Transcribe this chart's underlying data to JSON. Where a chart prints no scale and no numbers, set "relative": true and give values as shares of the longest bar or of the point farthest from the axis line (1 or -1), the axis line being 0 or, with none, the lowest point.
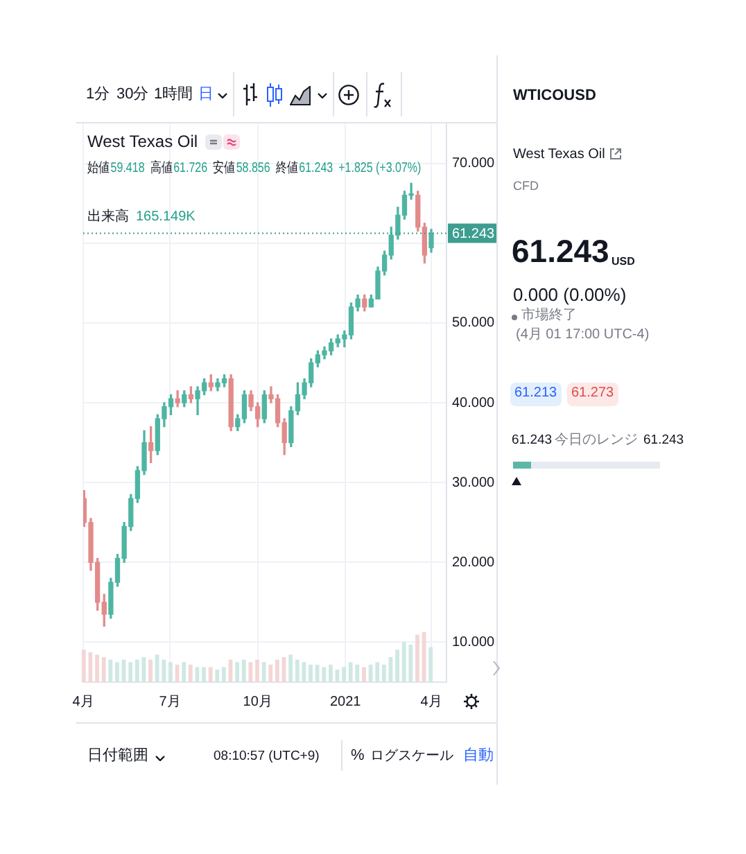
{
  "chart_data": [
    {
      "type": "candlestick",
      "title": "West Texas Oil",
      "x": [
        "2020-04-02",
        "2020-04-09",
        "2020-04-16",
        "2020-04-23",
        "2020-04-30",
        "2020-05-07",
        "2020-05-14",
        "2020-05-21",
        "2020-05-28",
        "2020-06-04",
        "2020-06-11",
        "2020-06-18",
        "2020-06-25",
        "2020-07-02",
        "2020-07-09",
        "2020-07-16",
        "2020-07-23",
        "2020-07-30",
        "2020-08-06",
        "2020-08-13",
        "2020-08-20",
        "2020-08-27",
        "2020-09-03",
        "2020-09-10",
        "2020-09-17",
        "2020-09-24",
        "2020-10-01",
        "2020-10-08",
        "2020-10-15",
        "2020-10-22",
        "2020-10-29",
        "2020-11-05",
        "2020-11-12",
        "2020-11-19",
        "2020-11-26",
        "2020-12-03",
        "2020-12-10",
        "2020-12-17",
        "2020-12-24",
        "2020-12-31",
        "2021-01-07",
        "2021-01-14",
        "2021-01-21",
        "2021-01-28",
        "2021-02-04",
        "2021-02-11",
        "2021-02-18",
        "2021-02-25",
        "2021-03-04",
        "2021-03-11",
        "2021-03-18",
        "2021-03-25",
        "2021-04-01"
      ],
      "ohlc": [
        [
          28,
          29,
          24.5,
          25
        ],
        [
          25,
          25.5,
          19,
          20
        ],
        [
          20,
          20.5,
          14,
          15
        ],
        [
          15,
          16,
          12,
          13.5
        ],
        [
          13.5,
          18,
          13,
          17.5
        ],
        [
          17.5,
          21,
          17,
          20.5
        ],
        [
          20.5,
          25,
          20,
          24.5
        ],
        [
          24.5,
          28.5,
          24,
          28
        ],
        [
          28,
          32,
          27.5,
          31.5
        ],
        [
          31.5,
          36.5,
          31,
          35
        ],
        [
          35,
          37,
          32.5,
          34
        ],
        [
          34,
          38.5,
          33.5,
          38
        ],
        [
          38,
          40,
          37,
          39.5
        ],
        [
          39.5,
          41,
          38.5,
          40.5
        ],
        [
          40.5,
          41.5,
          39.5,
          40
        ],
        [
          40,
          41.5,
          39.5,
          41
        ],
        [
          41,
          42,
          40,
          40.5
        ],
        [
          40.5,
          42,
          38.5,
          41.5
        ],
        [
          41.5,
          43,
          41,
          42.5
        ],
        [
          42.5,
          43.5,
          41.5,
          42
        ],
        [
          42,
          43,
          41.5,
          42.5
        ],
        [
          42.5,
          43.5,
          42,
          43
        ],
        [
          43,
          43.5,
          36.5,
          37
        ],
        [
          37,
          38.5,
          36.5,
          38
        ],
        [
          38,
          41.5,
          37.5,
          41
        ],
        [
          41,
          41.5,
          39,
          39.5
        ],
        [
          39.5,
          40,
          37,
          38
        ],
        [
          38,
          41.5,
          37.5,
          41
        ],
        [
          41,
          42,
          40,
          40.5
        ],
        [
          40.5,
          41,
          37,
          37.5
        ],
        [
          37.5,
          38,
          33.5,
          35
        ],
        [
          35,
          39.5,
          34.5,
          39
        ],
        [
          39,
          42.5,
          38.5,
          41
        ],
        [
          41,
          43,
          40.5,
          42.5
        ],
        [
          42.5,
          45.5,
          42,
          45
        ],
        [
          45,
          46.5,
          44.5,
          46
        ],
        [
          46,
          47,
          45.5,
          46.5
        ],
        [
          46.5,
          48,
          46,
          47.5
        ],
        [
          47.5,
          48.5,
          47,
          48
        ],
        [
          48,
          49,
          47,
          48.5
        ],
        [
          48.5,
          52.5,
          48,
          52
        ],
        [
          52,
          53.5,
          51.5,
          53
        ],
        [
          53,
          53.5,
          51.5,
          52
        ],
        [
          52,
          53.5,
          52,
          53
        ],
        [
          53,
          57,
          53,
          56.5
        ],
        [
          56.5,
          59,
          56,
          58.5
        ],
        [
          58.5,
          62,
          58,
          61
        ],
        [
          61,
          64.5,
          60.5,
          63.5
        ],
        [
          63.5,
          66.5,
          63,
          66
        ],
        [
          66,
          67.5,
          65.5,
          66
        ],
        [
          66,
          66.5,
          61.5,
          62
        ],
        [
          62,
          62.5,
          57.5,
          58.5
        ],
        [
          59.418,
          61.726,
          58.856,
          61.243
        ]
      ],
      "colors": [
        "#e28b8b",
        "#e28b8b",
        "#e28b8b",
        "#e28b8b",
        "#4fb5a3",
        "#4fb5a3",
        "#4fb5a3",
        "#4fb5a3",
        "#4fb5a3",
        "#4fb5a3",
        "#e28b8b",
        "#4fb5a3",
        "#4fb5a3",
        "#4fb5a3",
        "#e28b8b",
        "#4fb5a3",
        "#e28b8b",
        "#4fb5a3",
        "#4fb5a3",
        "#e28b8b",
        "#4fb5a3",
        "#4fb5a3",
        "#e28b8b",
        "#4fb5a3",
        "#4fb5a3",
        "#e28b8b",
        "#e28b8b",
        "#4fb5a3",
        "#e28b8b",
        "#e28b8b",
        "#e28b8b",
        "#4fb5a3",
        "#4fb5a3",
        "#4fb5a3",
        "#4fb5a3",
        "#4fb5a3",
        "#4fb5a3",
        "#4fb5a3",
        "#4fb5a3",
        "#4fb5a3",
        "#4fb5a3",
        "#4fb5a3",
        "#e28b8b",
        "#4fb5a3",
        "#4fb5a3",
        "#4fb5a3",
        "#4fb5a3",
        "#4fb5a3",
        "#4fb5a3",
        "#4fb5a3",
        "#e28b8b",
        "#e28b8b",
        "#4fb5a3"
      ],
      "xlim": [
        "2020-04-01",
        "2021-04-17"
      ],
      "xticks": [
        {
          "value": "2020-04-01",
          "label": "4月"
        },
        {
          "value": "2020-07-01",
          "label": "7月"
        },
        {
          "value": "2020-10-01",
          "label": "10月"
        },
        {
          "value": "2021-01-01",
          "label": "2021"
        },
        {
          "value": "2021-04-01",
          "label": "4月"
        }
      ],
      "ylim": [
        5,
        75
      ],
      "yticks": [
        {
          "value": 10,
          "label": "10.000"
        },
        {
          "value": 20,
          "label": "20.000"
        },
        {
          "value": 30,
          "label": "30.000"
        },
        {
          "value": 40,
          "label": "40.000"
        },
        {
          "value": 50,
          "label": "50.000"
        },
        {
          "value": 60,
          "label": null
        },
        {
          "value": 70,
          "label": "70.000"
        }
      ],
      "grid": true,
      "ref_lines": [
        {
          "axis": "y",
          "value": 61.243,
          "label": "61.243",
          "color": "#3d9e90",
          "line_style": "dotted"
        }
      ],
      "annotations": [
        "1分",
        "30分",
        "1時間",
        "日",
        "始値",
        "59.418",
        "高値",
        "61.726",
        "安値",
        "58.856",
        "終値",
        "61.243",
        "+1.825 (+3.07%)",
        "出来高",
        "165.149K",
        "日付範囲",
        "08:10:57 (UTC+9)",
        "%",
        "ログスケール",
        "自動"
      ]
    },
    {
      "type": "bar",
      "relative": true,
      "categories": [
        null,
        null,
        null,
        null,
        null,
        null,
        null,
        null,
        null,
        null,
        null,
        null,
        null,
        null,
        null,
        null,
        null,
        null,
        null,
        null,
        null,
        null,
        null,
        null,
        null,
        null,
        null,
        null,
        null,
        null,
        null,
        null,
        null,
        null,
        null,
        null,
        null,
        null,
        null,
        null,
        null,
        null,
        null,
        null,
        null,
        null,
        null,
        null,
        null,
        null,
        null,
        null,
        null
      ],
      "values": [
        0.65,
        0.6,
        0.55,
        0.5,
        0.45,
        0.4,
        0.45,
        0.4,
        0.45,
        0.5,
        0.45,
        0.55,
        0.45,
        0.4,
        0.35,
        0.4,
        0.35,
        0.3,
        0.3,
        0.3,
        0.25,
        0.3,
        0.45,
        0.4,
        0.45,
        0.4,
        0.45,
        0.4,
        0.35,
        0.45,
        0.5,
        0.55,
        0.45,
        0.4,
        0.35,
        0.35,
        0.3,
        0.35,
        0.25,
        0.3,
        0.4,
        0.35,
        0.3,
        0.35,
        0.4,
        0.35,
        0.5,
        0.65,
        0.8,
        0.75,
        0.95,
        1,
        0.7
      ],
      "colors": [
        "#f3d6d6",
        "#f3d6d6",
        "#f3d6d6",
        "#f3d6d6",
        "#cfe8e3",
        "#cfe8e3",
        "#cfe8e3",
        "#cfe8e3",
        "#cfe8e3",
        "#cfe8e3",
        "#f3d6d6",
        "#cfe8e3",
        "#cfe8e3",
        "#cfe8e3",
        "#f3d6d6",
        "#cfe8e3",
        "#f3d6d6",
        "#cfe8e3",
        "#cfe8e3",
        "#f3d6d6",
        "#cfe8e3",
        "#cfe8e3",
        "#f3d6d6",
        "#cfe8e3",
        "#cfe8e3",
        "#f3d6d6",
        "#f3d6d6",
        "#cfe8e3",
        "#f3d6d6",
        "#f3d6d6",
        "#f3d6d6",
        "#cfe8e3",
        "#cfe8e3",
        "#cfe8e3",
        "#cfe8e3",
        "#cfe8e3",
        "#cfe8e3",
        "#cfe8e3",
        "#cfe8e3",
        "#cfe8e3",
        "#cfe8e3",
        "#cfe8e3",
        "#f3d6d6",
        "#cfe8e3",
        "#cfe8e3",
        "#cfe8e3",
        "#cfe8e3",
        "#cfe8e3",
        "#cfe8e3",
        "#cfe8e3",
        "#f3d6d6",
        "#f3d6d6",
        "#cfe8e3"
      ]
    },
    {
      "type": "other",
      "title": "WTICOUSD",
      "subtitle": "West Texas Oil",
      "annotations": [
        "CFD",
        "61.243",
        "USD",
        "0.000 (0.00%)",
        "市場終了",
        "(4月 01 17:00 UTC-4)",
        "61.213",
        "61.273",
        "61.243",
        "今日のレンジ",
        "61.243"
      ]
    }
  ]
}
